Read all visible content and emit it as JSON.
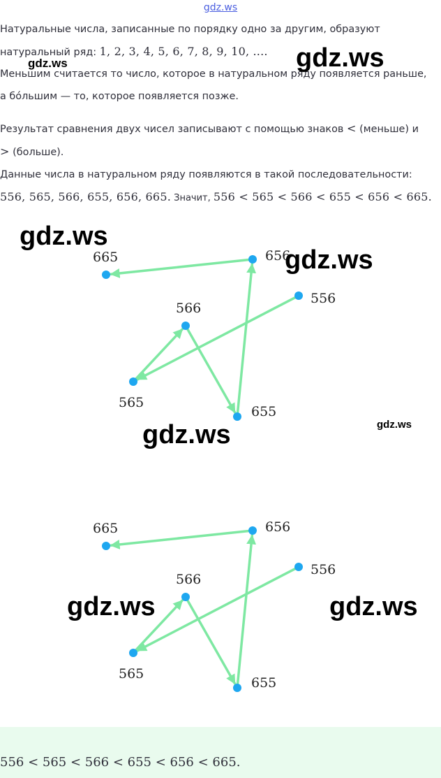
{
  "site_link": "gdz.ws",
  "watermark": "gdz.ws",
  "paragraphs": {
    "p1_line1": "Натуральные числа, записанные по порядку одно за другим, образуют",
    "p1_line2_text": "натуральный ряд: ",
    "p1_line2_math": "1,  2,  3,  4,  5,  6,  7,  8,  9,  10,  ....",
    "p2_line1": "Меньшим считается то число, которое в натуральном ряду появляется раньше,",
    "p2_line2": "а бóльшим — то, которое появляется позже.",
    "p3_line1_text": "Результат сравнения двух чисел записывают с помощью знаков ",
    "p3_line1_math": "<",
    "p3_line1_tail": " (меньше) и",
    "p3_line2_math": ">",
    "p3_line2_tail": " (больше).",
    "p4_line1": "Данные числа в натуральном ряду появляются в такой последовательности:",
    "p4_line2_math": "556, 565, 566, 655, 656, 665.",
    "p4_line2_text": " Значит, ",
    "p4_line2_math2": "556 < 565 < 566 < 655 < 656 < 665."
  },
  "diagram": {
    "nodes": [
      {
        "id": "665",
        "label": "665"
      },
      {
        "id": "656",
        "label": "656"
      },
      {
        "id": "556",
        "label": "556"
      },
      {
        "id": "566",
        "label": "566"
      },
      {
        "id": "565",
        "label": "565"
      },
      {
        "id": "655",
        "label": "655"
      }
    ],
    "arrows": [
      {
        "from": "556",
        "to": "565"
      },
      {
        "from": "565",
        "to": "566"
      },
      {
        "from": "566",
        "to": "655"
      },
      {
        "from": "655",
        "to": "656"
      },
      {
        "from": "656",
        "to": "665"
      }
    ],
    "colors": {
      "node": "#1ea7f0",
      "arrow": "#7ee8a2"
    }
  },
  "answer": "556 < 565 < 566 < 655 < 656 < 665.",
  "colors": {
    "answer_bg": "#e9fbee",
    "link": "#4b5fe0"
  }
}
